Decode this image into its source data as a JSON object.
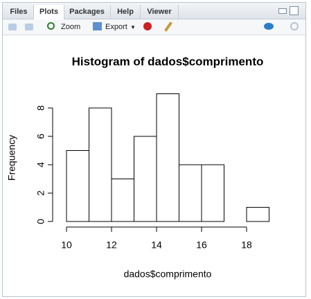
{
  "tabs": [
    "Files",
    "Plots",
    "Packages",
    "Help",
    "Viewer"
  ],
  "active_tab": "Plots",
  "toolbar": {
    "zoom": "Zoom",
    "export": "Export"
  },
  "chart_data": {
    "type": "histogram",
    "title": "Histogram of dados$comprimento",
    "x_label": "dados$comprimento",
    "y_label": "Frequency",
    "bins": [
      10,
      11,
      12,
      13,
      14,
      15,
      16,
      17,
      18,
      19
    ],
    "counts": [
      5,
      8,
      3,
      6,
      9,
      4,
      4,
      0,
      1
    ],
    "xlim": [
      10,
      19
    ],
    "ylim": [
      0,
      9
    ],
    "xticks": [
      10,
      12,
      14,
      16,
      18
    ],
    "yticks": [
      0,
      2,
      4,
      6,
      8
    ],
    "fill": "#ffffff",
    "edge": "#000000"
  }
}
